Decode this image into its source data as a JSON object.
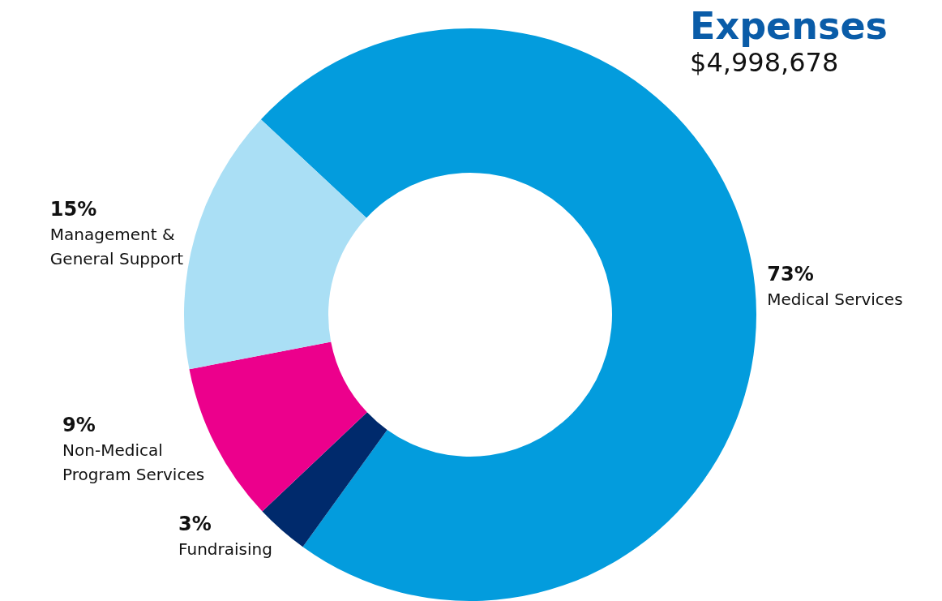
{
  "chart_data": {
    "type": "donut",
    "title": "Expenses",
    "subtitle": "$4,998,678",
    "categories": [
      "Medical Services",
      "Fundraising",
      "Non-Medical\nProgram Services",
      "Management &\nGeneral Support"
    ],
    "values": [
      73,
      3,
      9,
      15
    ],
    "colors": [
      "#039cdd",
      "#002a6c",
      "#ec008c",
      "#aadff5"
    ],
    "value_labels": [
      "73%",
      "3%",
      "9%",
      "15%"
    ],
    "legend": false
  }
}
